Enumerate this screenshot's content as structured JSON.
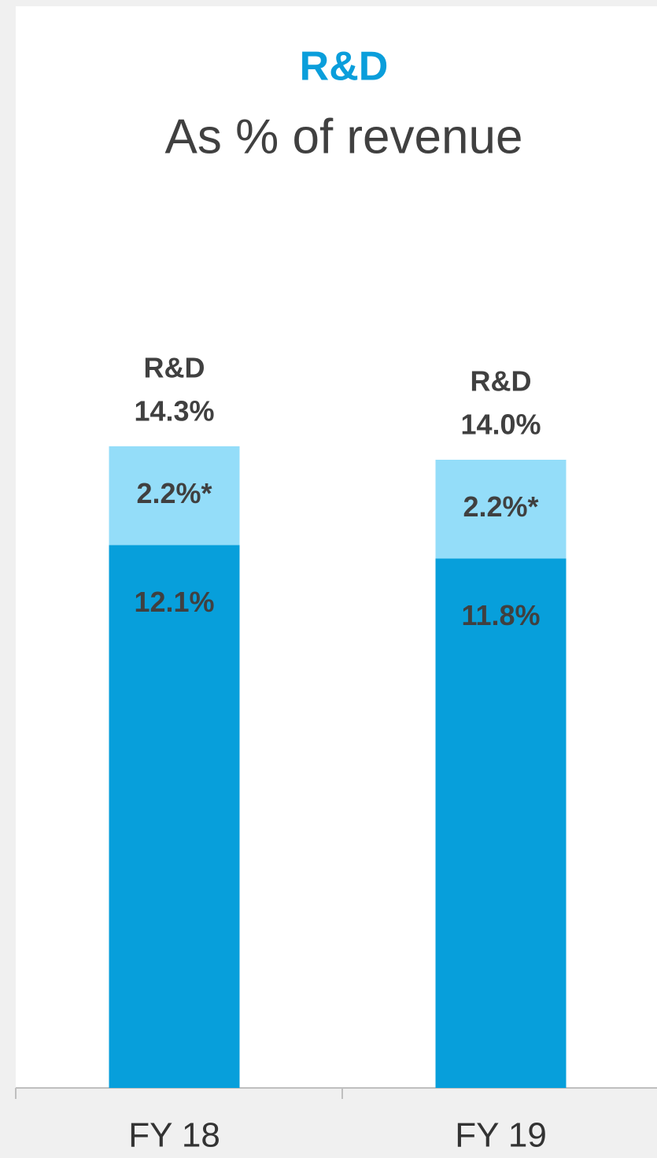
{
  "chart_data": {
    "type": "stacked_bar",
    "title": "R&D",
    "subtitle": "As % of revenue",
    "categories": [
      "FY 18",
      "FY 19"
    ],
    "series": [
      {
        "color": "#079fdb",
        "values": [
          12.1,
          11.8
        ],
        "value_labels": [
          "12.1%",
          "11.8%"
        ]
      },
      {
        "color": "#94ddf9",
        "values": [
          2.2,
          2.2
        ],
        "value_labels": [
          "2.2%*",
          "2.2%*"
        ]
      }
    ],
    "total_name": "R&D",
    "totals": [
      14.3,
      14.0
    ],
    "total_labels": [
      "14.3%",
      "14.0%"
    ],
    "ylim": [
      0,
      20
    ]
  }
}
